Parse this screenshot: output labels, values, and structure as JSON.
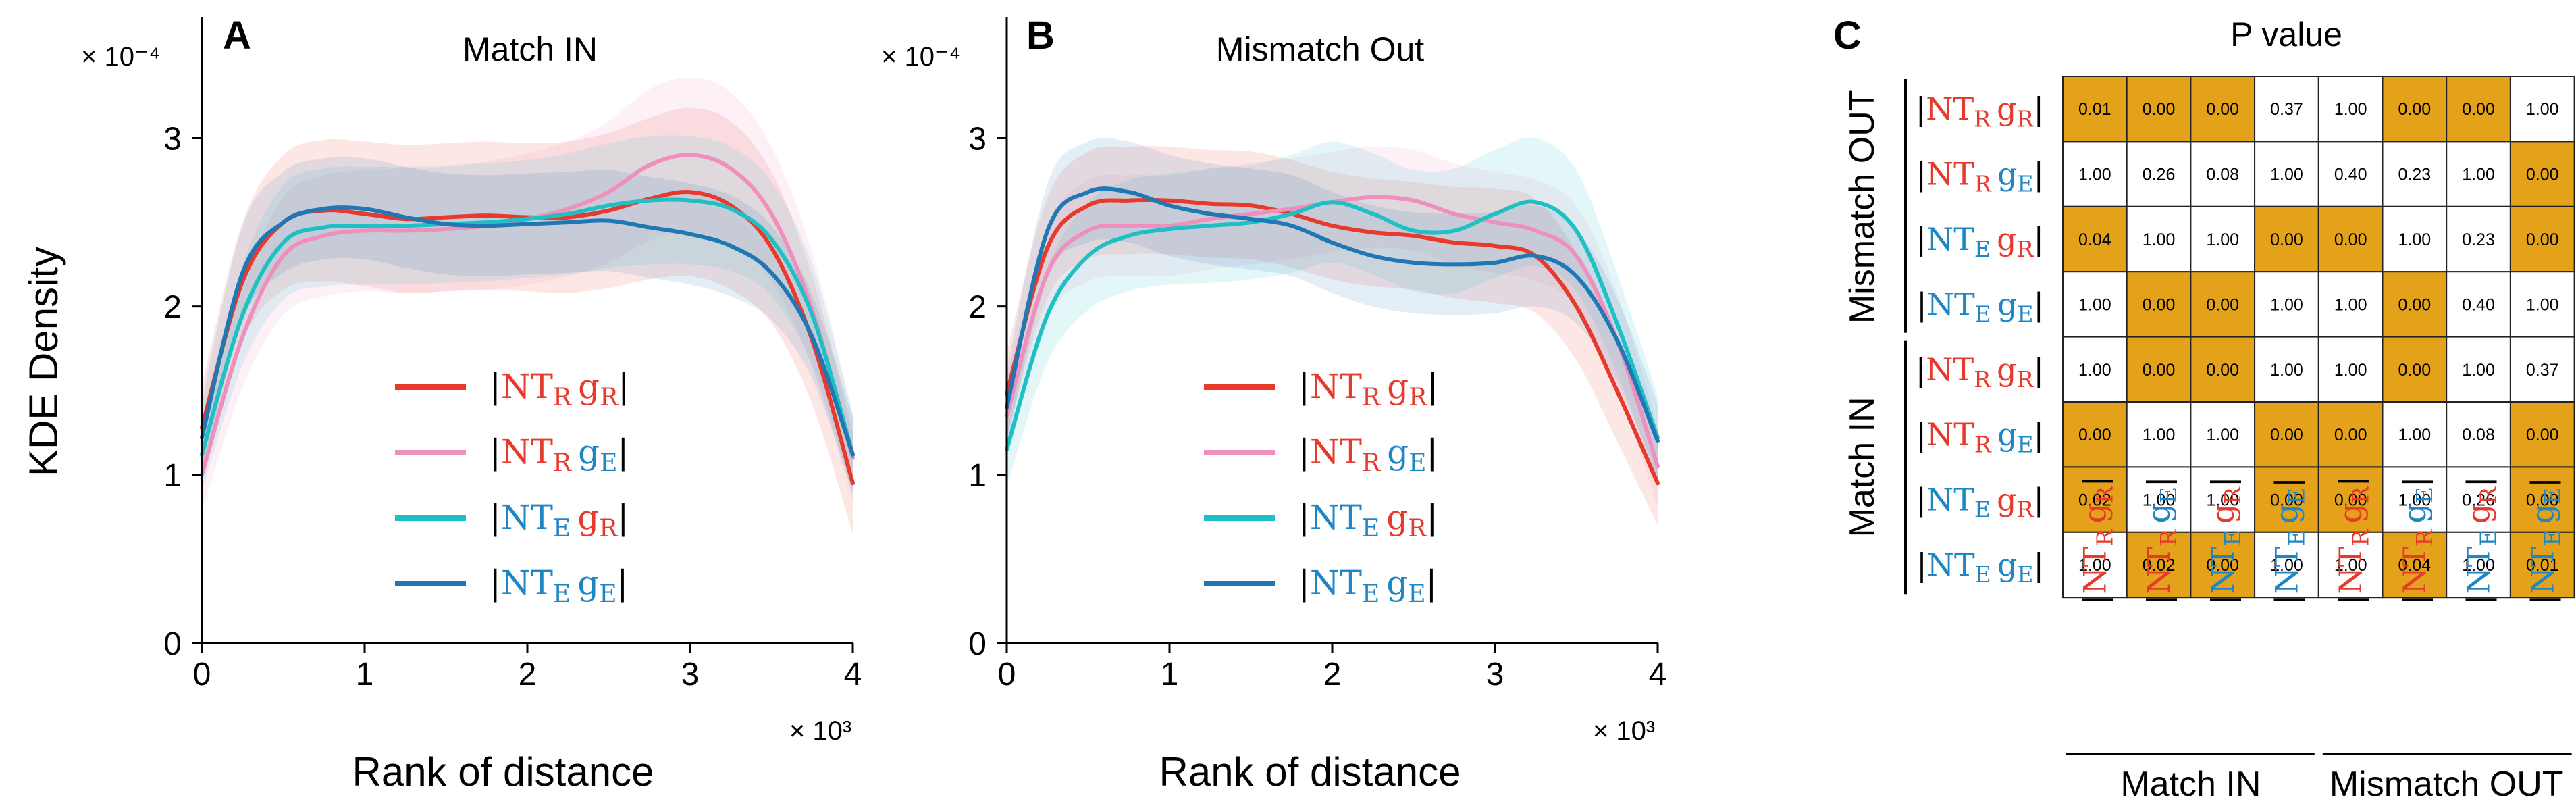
{
  "colors": {
    "RR": "#e8392d",
    "RE": "#ef8fbd",
    "ER": "#1fc0c4",
    "EE": "#1f77b4",
    "red_text": "#e8392d",
    "blue_text": "#1f86c6",
    "highlight": "#e3a21a",
    "axis": "#000000"
  },
  "legend_terms": [
    {
      "key": "RR",
      "nt_sub": "R",
      "g_sub": "R"
    },
    {
      "key": "RE",
      "nt_sub": "R",
      "g_sub": "E"
    },
    {
      "key": "ER",
      "nt_sub": "E",
      "g_sub": "R"
    },
    {
      "key": "EE",
      "nt_sub": "E",
      "g_sub": "E"
    }
  ],
  "chart_data": [
    {
      "panel": "A",
      "type": "line",
      "title": "Match IN",
      "xlabel": "Rank of distance",
      "ylabel": "KDE Density",
      "x_multiplier_label": "× 10³",
      "y_multiplier_label": "× 10⁻⁴",
      "xlim": [
        0,
        4
      ],
      "ylim": [
        0,
        3.6
      ],
      "xticks": [
        0,
        1,
        2,
        3,
        4
      ],
      "yticks": [
        0,
        1,
        2,
        3
      ],
      "x": [
        0,
        0.25,
        0.5,
        0.75,
        1.0,
        1.25,
        1.5,
        1.75,
        2.0,
        2.25,
        2.5,
        2.75,
        3.0,
        3.25,
        3.5,
        3.75,
        4.0
      ],
      "series": [
        {
          "key": "RR",
          "values": [
            1.28,
            2.15,
            2.5,
            2.57,
            2.55,
            2.52,
            2.53,
            2.54,
            2.53,
            2.53,
            2.57,
            2.64,
            2.68,
            2.6,
            2.35,
            1.8,
            0.95
          ],
          "band_half_width": [
            0.25,
            0.35,
            0.4,
            0.42,
            0.43,
            0.44,
            0.44,
            0.44,
            0.44,
            0.45,
            0.46,
            0.48,
            0.5,
            0.5,
            0.45,
            0.38,
            0.3
          ]
        },
        {
          "key": "RE",
          "values": [
            1.0,
            1.82,
            2.3,
            2.42,
            2.45,
            2.45,
            2.46,
            2.48,
            2.52,
            2.58,
            2.68,
            2.84,
            2.9,
            2.82,
            2.55,
            1.98,
            1.1
          ],
          "band_half_width": [
            0.22,
            0.3,
            0.35,
            0.36,
            0.36,
            0.37,
            0.37,
            0.38,
            0.39,
            0.4,
            0.42,
            0.45,
            0.46,
            0.45,
            0.4,
            0.34,
            0.26
          ]
        },
        {
          "key": "ER",
          "values": [
            1.12,
            1.95,
            2.38,
            2.47,
            2.48,
            2.48,
            2.49,
            2.5,
            2.52,
            2.55,
            2.6,
            2.63,
            2.63,
            2.58,
            2.4,
            1.95,
            1.12
          ],
          "band_half_width": [
            0.22,
            0.3,
            0.34,
            0.35,
            0.35,
            0.35,
            0.35,
            0.35,
            0.35,
            0.36,
            0.37,
            0.38,
            0.38,
            0.37,
            0.34,
            0.3,
            0.24
          ]
        },
        {
          "key": "EE",
          "values": [
            1.22,
            2.2,
            2.5,
            2.58,
            2.58,
            2.53,
            2.49,
            2.48,
            2.49,
            2.5,
            2.51,
            2.47,
            2.43,
            2.36,
            2.2,
            1.82,
            1.12
          ],
          "band_half_width": [
            0.22,
            0.28,
            0.3,
            0.3,
            0.3,
            0.3,
            0.3,
            0.3,
            0.3,
            0.3,
            0.3,
            0.3,
            0.3,
            0.3,
            0.28,
            0.25,
            0.22
          ]
        }
      ]
    },
    {
      "panel": "B",
      "type": "line",
      "title": "Mismatch Out",
      "xlabel": "Rank of distance",
      "ylabel": "",
      "x_multiplier_label": "× 10³",
      "y_multiplier_label": "× 10⁻⁴",
      "xlim": [
        0,
        4
      ],
      "ylim": [
        0,
        3.6
      ],
      "xticks": [
        0,
        1,
        2,
        3,
        4
      ],
      "yticks": [
        0,
        1,
        2,
        3
      ],
      "x": [
        0,
        0.25,
        0.5,
        0.75,
        1.0,
        1.25,
        1.5,
        1.75,
        2.0,
        2.25,
        2.5,
        2.75,
        3.0,
        3.25,
        3.5,
        3.75,
        4.0
      ],
      "series": [
        {
          "key": "RR",
          "values": [
            1.48,
            2.35,
            2.6,
            2.63,
            2.63,
            2.61,
            2.6,
            2.55,
            2.48,
            2.44,
            2.42,
            2.38,
            2.36,
            2.3,
            2.0,
            1.5,
            0.95
          ],
          "band_half_width": [
            0.25,
            0.3,
            0.32,
            0.32,
            0.32,
            0.32,
            0.32,
            0.32,
            0.32,
            0.32,
            0.32,
            0.33,
            0.34,
            0.34,
            0.32,
            0.3,
            0.25
          ]
        },
        {
          "key": "RE",
          "values": [
            1.35,
            2.2,
            2.45,
            2.48,
            2.48,
            2.52,
            2.55,
            2.58,
            2.62,
            2.65,
            2.63,
            2.55,
            2.5,
            2.45,
            2.3,
            1.8,
            1.05
          ],
          "band_half_width": [
            0.22,
            0.28,
            0.3,
            0.3,
            0.3,
            0.3,
            0.3,
            0.3,
            0.3,
            0.3,
            0.3,
            0.3,
            0.3,
            0.3,
            0.3,
            0.28,
            0.24
          ]
        },
        {
          "key": "ER",
          "values": [
            1.15,
            1.95,
            2.3,
            2.42,
            2.46,
            2.48,
            2.5,
            2.55,
            2.62,
            2.55,
            2.45,
            2.45,
            2.55,
            2.62,
            2.45,
            1.9,
            1.22
          ],
          "band_half_width": [
            0.22,
            0.28,
            0.32,
            0.33,
            0.33,
            0.34,
            0.34,
            0.35,
            0.36,
            0.36,
            0.36,
            0.37,
            0.38,
            0.38,
            0.36,
            0.3,
            0.25
          ]
        },
        {
          "key": "EE",
          "values": [
            1.4,
            2.45,
            2.68,
            2.68,
            2.6,
            2.55,
            2.52,
            2.48,
            2.38,
            2.3,
            2.26,
            2.25,
            2.26,
            2.3,
            2.18,
            1.8,
            1.2
          ],
          "band_half_width": [
            0.22,
            0.28,
            0.3,
            0.3,
            0.3,
            0.3,
            0.3,
            0.3,
            0.3,
            0.3,
            0.3,
            0.3,
            0.3,
            0.3,
            0.28,
            0.25,
            0.22
          ]
        }
      ]
    },
    {
      "panel": "C",
      "type": "heatmap",
      "title": "P value",
      "row_groups": [
        "Mismatch OUT",
        "Match IN"
      ],
      "col_groups": [
        "Match IN",
        "Mismatch OUT"
      ],
      "rows": [
        "RR",
        "RE",
        "ER",
        "EE",
        "RR",
        "RE",
        "ER",
        "EE"
      ],
      "cols": [
        "RR",
        "RE",
        "ER",
        "EE",
        "RR",
        "RE",
        "ER",
        "EE"
      ],
      "values": [
        [
          "0.01",
          "0.00",
          "0.00",
          "0.37",
          "1.00",
          "0.00",
          "0.00",
          "1.00"
        ],
        [
          "1.00",
          "0.26",
          "0.08",
          "1.00",
          "0.40",
          "0.23",
          "1.00",
          "0.00"
        ],
        [
          "0.04",
          "1.00",
          "1.00",
          "0.00",
          "0.00",
          "1.00",
          "0.23",
          "0.00"
        ],
        [
          "1.00",
          "0.00",
          "0.00",
          "1.00",
          "1.00",
          "0.00",
          "0.40",
          "1.00"
        ],
        [
          "1.00",
          "0.00",
          "0.00",
          "1.00",
          "1.00",
          "0.00",
          "1.00",
          "0.37"
        ],
        [
          "0.00",
          "1.00",
          "1.00",
          "0.00",
          "0.00",
          "1.00",
          "0.08",
          "0.00"
        ],
        [
          "0.02",
          "1.00",
          "1.00",
          "0.00",
          "0.00",
          "1.00",
          "0.26",
          "0.00"
        ],
        [
          "1.00",
          "0.02",
          "0.00",
          "1.00",
          "1.00",
          "0.04",
          "1.00",
          "0.01"
        ]
      ],
      "highlighted": [
        [
          1,
          1,
          1,
          0,
          0,
          1,
          1,
          0
        ],
        [
          0,
          0,
          0,
          0,
          0,
          0,
          0,
          1
        ],
        [
          1,
          0,
          0,
          1,
          1,
          0,
          0,
          1
        ],
        [
          0,
          1,
          1,
          0,
          0,
          1,
          0,
          0
        ],
        [
          0,
          1,
          1,
          0,
          0,
          1,
          0,
          0
        ],
        [
          1,
          0,
          0,
          1,
          1,
          0,
          0,
          1
        ],
        [
          1,
          0,
          0,
          1,
          1,
          0,
          0,
          1
        ],
        [
          0,
          1,
          1,
          0,
          0,
          1,
          0,
          1
        ]
      ]
    }
  ]
}
